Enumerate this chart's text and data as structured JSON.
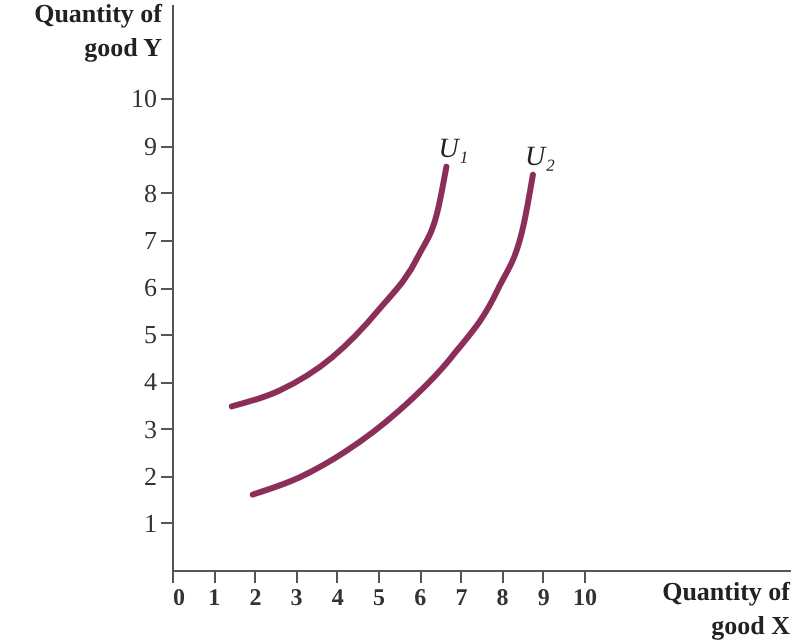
{
  "chart_data": {
    "type": "line",
    "xlabel": "Quantity of good X",
    "ylabel": "Quantity of good Y",
    "series": [
      {
        "name": "U₁",
        "color": "#8b2f5a",
        "x": [
          1.45,
          2.6,
          3.89,
          5.02,
          5.98,
          6.46,
          6.66
        ],
        "values": [
          3.47,
          3.8,
          4.51,
          5.52,
          6.66,
          7.66,
          8.55
        ]
      },
      {
        "name": "U₂",
        "color": "#8b2f5a",
        "x": [
          1.96,
          3.09,
          4.21,
          5.5,
          6.78,
          7.91,
          8.55,
          8.76
        ],
        "values": [
          1.6,
          1.96,
          2.51,
          3.37,
          4.51,
          5.95,
          7.38,
          8.38
        ]
      }
    ],
    "xlim": [
      0,
      15
    ],
    "ylim": [
      0,
      12
    ],
    "xticks": [
      0,
      1,
      2,
      3,
      4,
      5,
      6,
      7,
      8,
      9,
      10
    ],
    "yticks": [
      1,
      2,
      3,
      4,
      5,
      6,
      7,
      8,
      9,
      10
    ],
    "grid": false,
    "marker": "none",
    "line_style": "solid"
  }
}
